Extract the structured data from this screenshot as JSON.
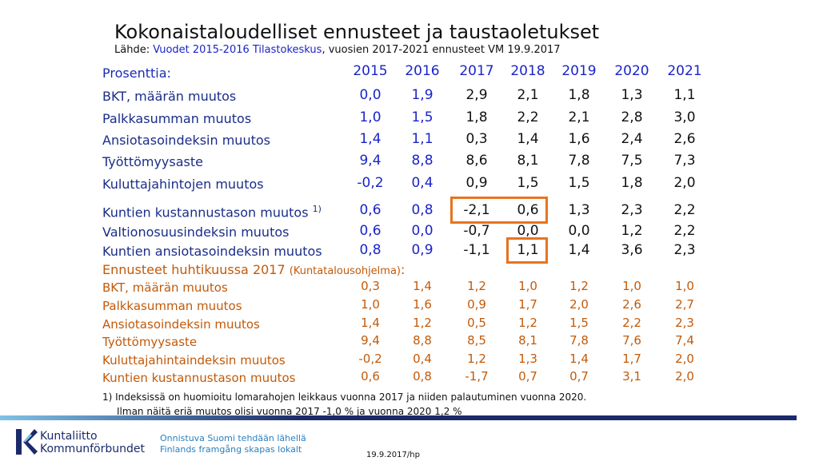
{
  "title": "Kokonaistaloudelliset ennusteet ja taustaoletukset",
  "source": {
    "prefix": "Lähde: ",
    "highlight": "Vuodet 2015-2016 Tilastokeskus",
    "rest": ", vuosien 2017-2021 ennusteet VM 19.9.2017"
  },
  "prosenttia": "Prosenttia:",
  "years": [
    "2015",
    "2016",
    "2017",
    "2018",
    "2019",
    "2020",
    "2021"
  ],
  "rows_blue": [
    {
      "label": "BKT, määrän muutos",
      "values": [
        "0,0",
        "1,9",
        "2,9",
        "2,1",
        "1,8",
        "1,3",
        "1,1"
      ]
    },
    {
      "label": "Palkkasumman muutos",
      "values": [
        "1,0",
        "1,5",
        "1,8",
        "2,2",
        "2,1",
        "2,8",
        "3,0"
      ]
    },
    {
      "label": "Ansiotasoindeksin muutos",
      "values": [
        "1,4",
        "1,1",
        "0,3",
        "1,4",
        "1,6",
        "2,4",
        "2,6"
      ]
    },
    {
      "label": "Työttömyysaste",
      "values": [
        "9,4",
        "8,8",
        "8,6",
        "8,1",
        "7,8",
        "7,5",
        "7,3"
      ]
    },
    {
      "label": "Kuluttajahintojen muutos",
      "values": [
        "-0,2",
        "0,4",
        "0,9",
        "1,5",
        "1,5",
        "1,8",
        "2,0"
      ]
    },
    {
      "label": "Kuntien kustannustason muutos",
      "sup": "1)",
      "values": [
        "0,6",
        "0,8",
        "-2,1",
        "0,6",
        "1,3",
        "2,3",
        "2,2"
      ]
    },
    {
      "label": "Valtionosuusindeksin muutos",
      "values": [
        "0,6",
        "0,0",
        "-0,7",
        "0,0",
        "0,0",
        "1,2",
        "2,2"
      ]
    },
    {
      "label": "Kuntien ansiotasoindeksin muutos",
      "values": [
        "0,8",
        "0,9",
        "-1,1",
        "1,1",
        "1,4",
        "3,6",
        "2,3"
      ]
    }
  ],
  "section_head": {
    "main": "Ennusteet huhtikuussa 2017 ",
    "small": "(Kuntatalousohjelma)",
    "tail": ":"
  },
  "rows_orange": [
    {
      "label": "BKT, määrän muutos",
      "values": [
        "0,3",
        "1,4",
        "1,2",
        "1,0",
        "1,2",
        "1,0",
        "1,0"
      ]
    },
    {
      "label": "Palkkasumman muutos",
      "values": [
        "1,0",
        "1,6",
        "0,9",
        "1,7",
        "2,0",
        "2,6",
        "2,7"
      ]
    },
    {
      "label": "Ansiotasoindeksin muutos",
      "values": [
        "1,4",
        "1,2",
        "0,5",
        "1,2",
        "1,5",
        "2,2",
        "2,3"
      ]
    },
    {
      "label": "Työttömyysaste",
      "values": [
        "9,4",
        "8,8",
        "8,5",
        "8,1",
        "7,8",
        "7,6",
        "7,4"
      ]
    },
    {
      "label": "Kuluttajahintaindeksin muutos",
      "values": [
        "-0,2",
        "0,4",
        "1,2",
        "1,3",
        "1,4",
        "1,7",
        "2,0"
      ]
    },
    {
      "label": "Kuntien kustannustason muutos",
      "values": [
        "0,6",
        "0,8",
        "-1,7",
        "0,7",
        "0,7",
        "3,1",
        "2,0"
      ]
    }
  ],
  "footnote1": "1) Indeksissä on huomioitu lomarahojen leikkaus  vuonna 2017 ja niiden palautuminen vuonna 2020.",
  "footnote2": "Ilman näitä eriä muutos olisi vuonna 2017 -1,0 % ja vuonna 2020 1,2 %",
  "brand": {
    "line1": "Kuntaliitto",
    "line2": "Kommunförbundet"
  },
  "slogan": {
    "line1": "Onnistuva Suomi tehdään lähellä",
    "line2": "Finlands framgång skapas lokalt"
  },
  "date": "19.9.2017/hp",
  "colors": {
    "blue": "#1a24c8",
    "orange": "#c25a0a",
    "highlight_box": "#e8731f",
    "navy": "#1b2a6b"
  }
}
